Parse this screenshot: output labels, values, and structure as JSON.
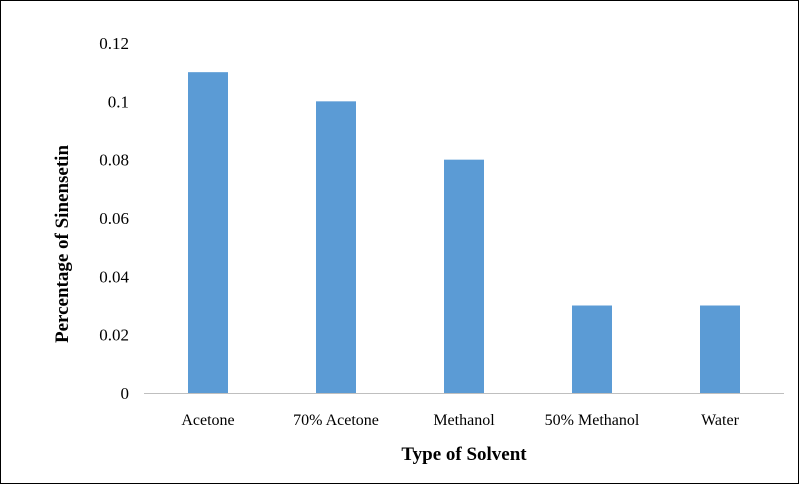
{
  "chart_data": {
    "type": "bar",
    "title": "",
    "xlabel": "Type of Solvent",
    "ylabel": "Percentage of Sinensetin",
    "categories": [
      "Acetone",
      "70% Acetone",
      "Methanol",
      "50% Methanol",
      "Water"
    ],
    "values": [
      0.11,
      0.1,
      0.08,
      0.03,
      0.03
    ],
    "ylim": [
      0,
      0.12
    ],
    "yticks": [
      "0",
      "0.02",
      "0.04",
      "0.06",
      "0.08",
      "0.1",
      "0.12"
    ],
    "grid": false,
    "legend": "none",
    "bar_color": "#5B9BD5",
    "axis_color": "#BFBFBF"
  }
}
